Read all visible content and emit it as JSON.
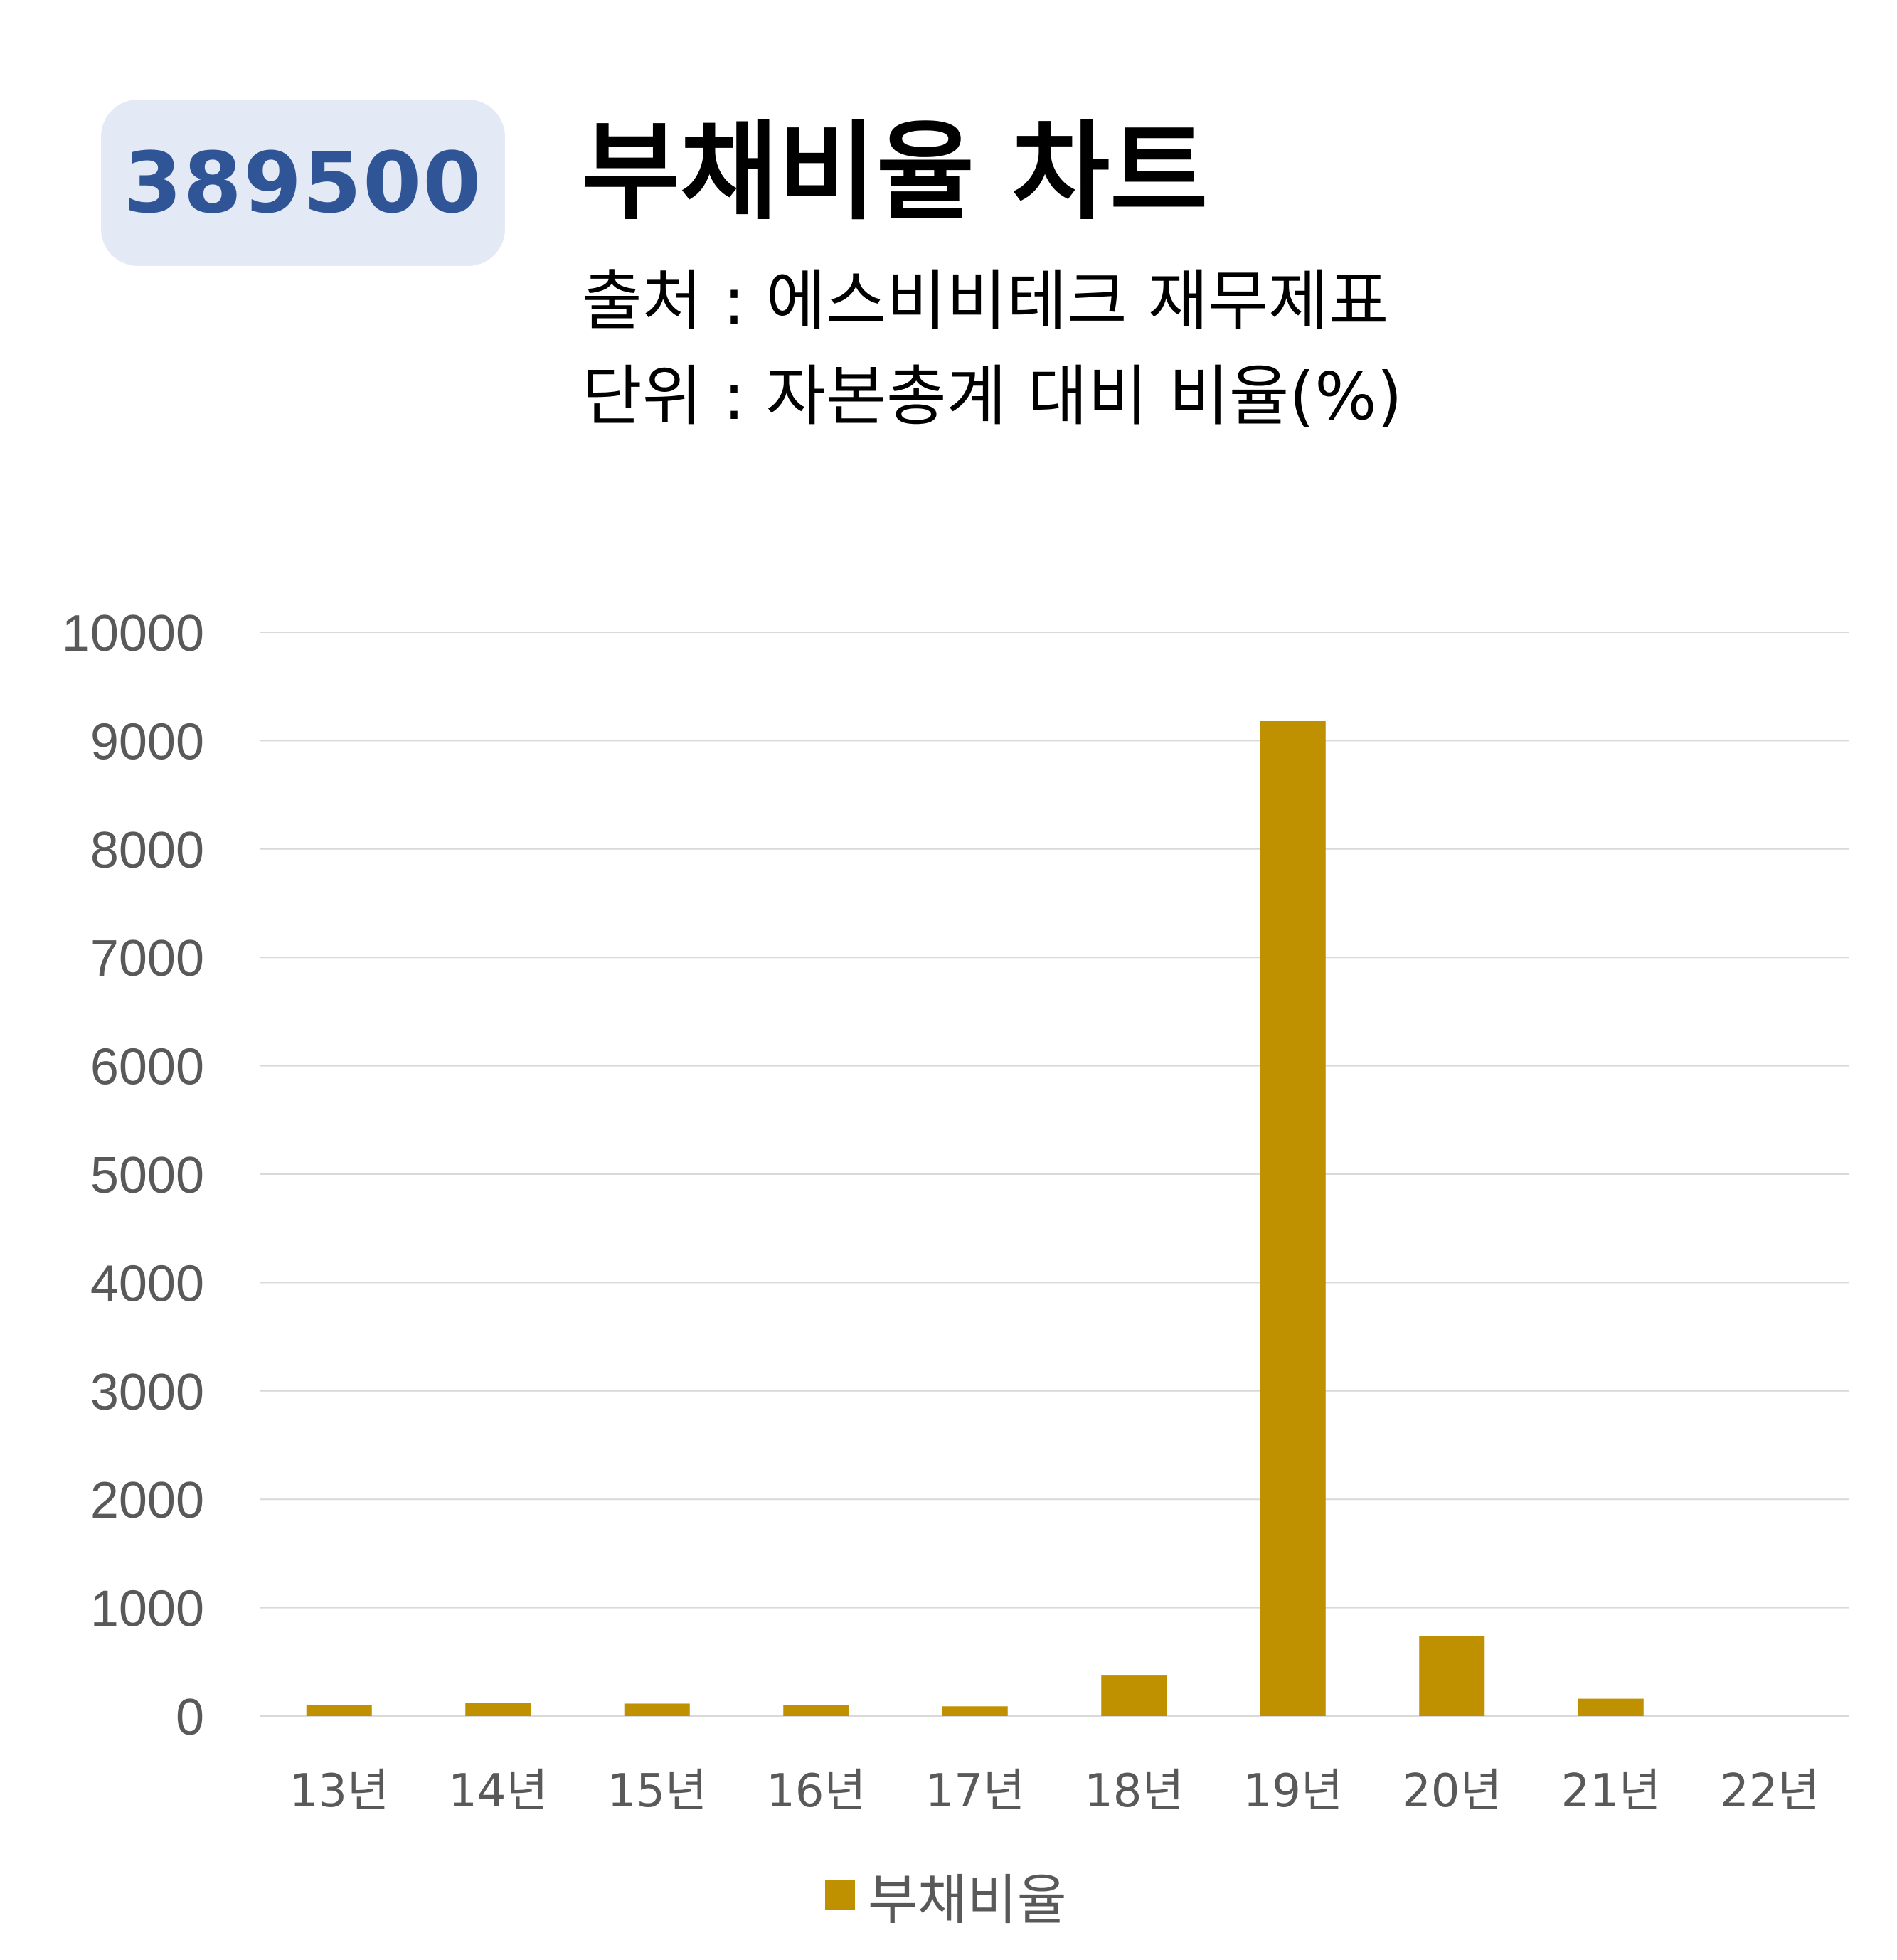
{
  "badge": {
    "code": "389500"
  },
  "header": {
    "title": "부채비율 차트",
    "source": "출처 : 에스비비테크 재무제표",
    "unit": "단위 : 자본총계 대비 비율(%)"
  },
  "colors": {
    "bar": "#bf9000",
    "badge_bg": "#e3e9f5",
    "badge_text": "#2f5597",
    "grid": "#d9d9d9",
    "tick": "#595959"
  },
  "chart_data": {
    "type": "bar",
    "categories": [
      "13년",
      "14년",
      "15년",
      "16년",
      "17년",
      "18년",
      "19년",
      "20년",
      "21년",
      "22년"
    ],
    "series": [
      {
        "name": "부채비율",
        "values": [
          100,
          120,
          115,
          100,
          90,
          380,
          9180,
          740,
          160,
          0
        ]
      }
    ],
    "ylim": [
      0,
      10000
    ],
    "yticks": [
      0,
      1000,
      2000,
      3000,
      4000,
      5000,
      6000,
      7000,
      8000,
      9000,
      10000
    ],
    "grid": true,
    "legend": "bottom-center"
  }
}
